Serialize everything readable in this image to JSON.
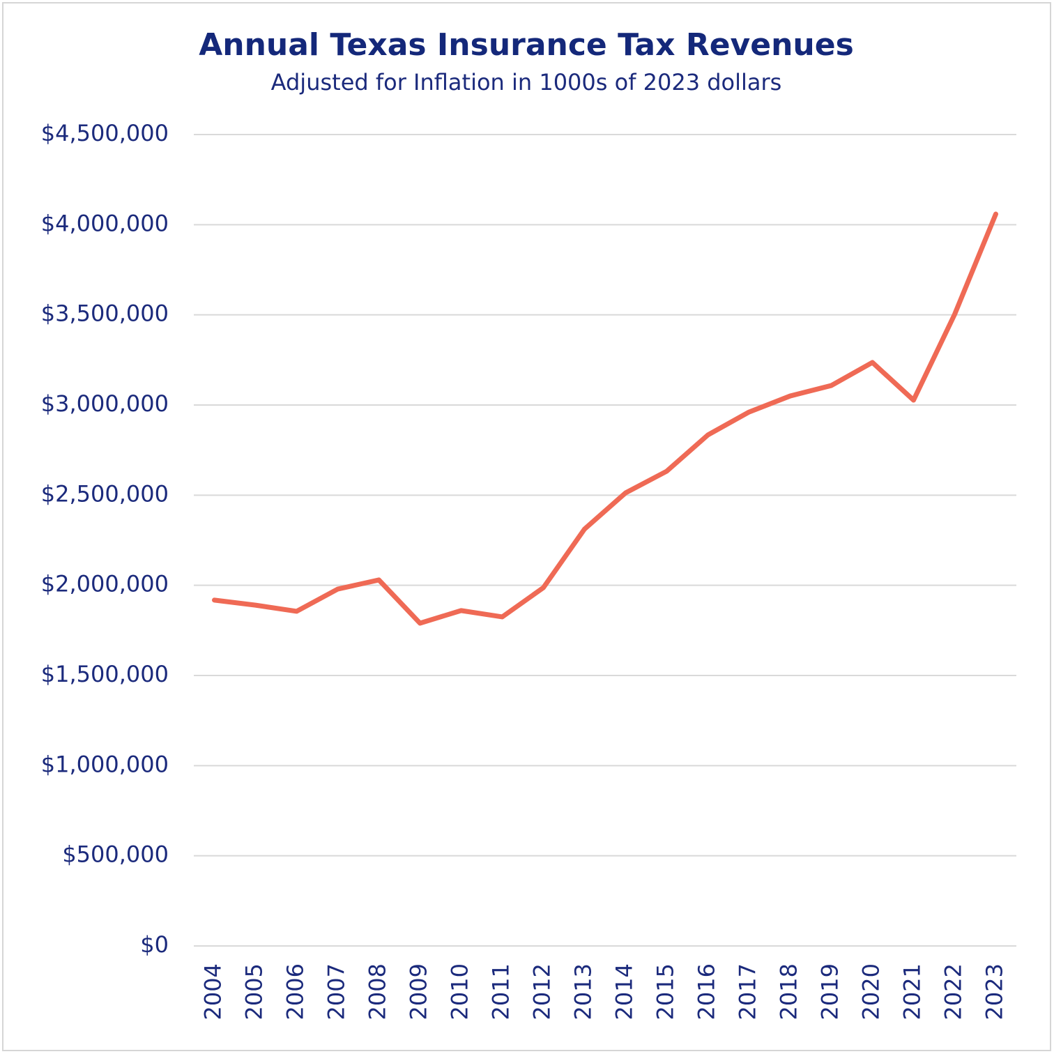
{
  "chart_data": {
    "type": "line",
    "title": "Annual Texas Insurance Tax Revenues",
    "subtitle": "Adjusted for Inflation in 1000s of 2023 dollars",
    "categories": [
      "2004",
      "2005",
      "2006",
      "2007",
      "2008",
      "2009",
      "2010",
      "2011",
      "2012",
      "2013",
      "2014",
      "2015",
      "2016",
      "2017",
      "2018",
      "2019",
      "2020",
      "2021",
      "2022",
      "2023"
    ],
    "series": [
      {
        "name": "Insurance tax revenue",
        "color": "#ef6a55",
        "values": [
          1918000,
          1890000,
          1856000,
          1979000,
          2030000,
          1790000,
          1860000,
          1825000,
          1987000,
          2312000,
          2513000,
          2633000,
          2834000,
          2961000,
          3050000,
          3108000,
          3236000,
          3027000,
          3503000,
          4059000
        ]
      }
    ],
    "ylim": [
      0,
      4500000
    ],
    "yticks": [
      {
        "value": 0,
        "label": "$0"
      },
      {
        "value": 500000,
        "label": "$500,000"
      },
      {
        "value": 1000000,
        "label": "$1,000,000"
      },
      {
        "value": 1500000,
        "label": "$1,500,000"
      },
      {
        "value": 2000000,
        "label": "$2,000,000"
      },
      {
        "value": 2500000,
        "label": "$2,500,000"
      },
      {
        "value": 3000000,
        "label": "$3,000,000"
      },
      {
        "value": 3500000,
        "label": "$3,500,000"
      },
      {
        "value": 4000000,
        "label": "$4,000,000"
      },
      {
        "value": 4500000,
        "label": "$4,500,000"
      }
    ],
    "grid": true
  }
}
